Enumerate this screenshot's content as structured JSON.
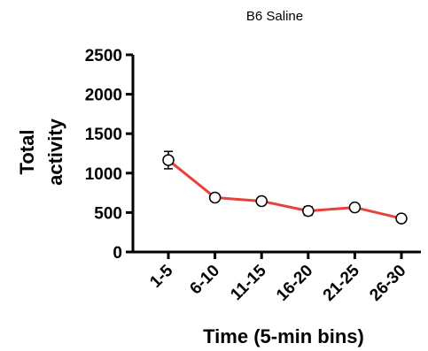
{
  "chart_data": {
    "type": "line",
    "title": "B6 Saline",
    "xlabel": "Time (5-min bins)",
    "ylabel_line1": "Total",
    "ylabel_line2": "activity",
    "categories": [
      "1-5",
      "6-10",
      "11-15",
      "16-20",
      "21-25",
      "26-30"
    ],
    "series": [
      {
        "values": [
          1165,
          690,
          645,
          520,
          565,
          425
        ],
        "errors": [
          110,
          25,
          45,
          55,
          30,
          45
        ],
        "color": "#e8403a"
      }
    ],
    "ylim": [
      0,
      2500
    ],
    "yticks": [
      0,
      500,
      1000,
      1500,
      2000,
      2500
    ],
    "grid": false,
    "legend": "none"
  }
}
